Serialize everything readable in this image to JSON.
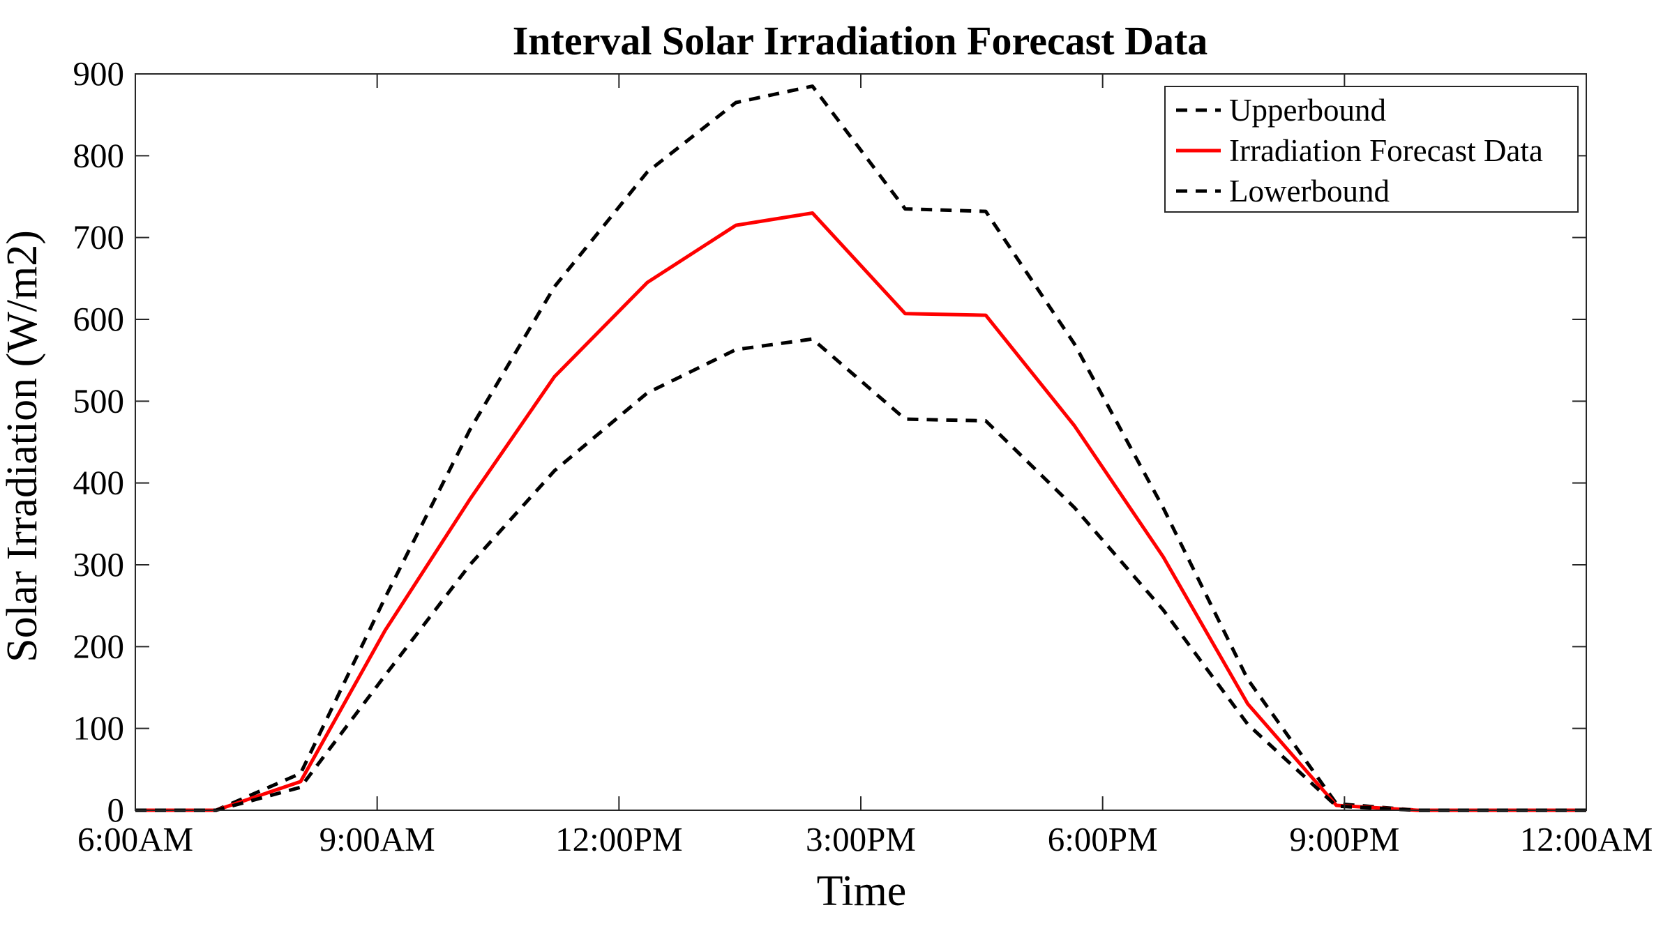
{
  "chart_data": {
    "type": "line",
    "title": "Interval Solar Irradiation Forecast Data",
    "xlabel": "Time",
    "ylabel": "Solar Irradiation (W/m2)",
    "x_hours": [
      6,
      7,
      8,
      9,
      10,
      11,
      12,
      13,
      14,
      15,
      16,
      17,
      18,
      19,
      20,
      21,
      22,
      23,
      24
    ],
    "xlim": [
      6,
      24
    ],
    "ylim": [
      0,
      900
    ],
    "x_ticks": [
      {
        "value": 6,
        "label": "6:00AM"
      },
      {
        "value": 9,
        "label": "9:00AM"
      },
      {
        "value": 12,
        "label": "12:00PM"
      },
      {
        "value": 15,
        "label": "3:00PM"
      },
      {
        "value": 18,
        "label": "6:00PM"
      },
      {
        "value": 21,
        "label": "9:00PM"
      },
      {
        "value": 24,
        "label": "12:00AM"
      }
    ],
    "y_ticks": [
      0,
      100,
      200,
      300,
      400,
      500,
      600,
      700,
      800,
      900
    ],
    "series": [
      {
        "name": "Upperbound",
        "color": "#000000",
        "style": "dashed",
        "x": [
          6,
          7,
          8.05,
          9.1,
          10.15,
          11.2,
          12.35,
          13.45,
          14.4,
          15.55,
          16.55,
          17.65,
          18.75,
          19.8,
          20.9,
          21.9,
          22.9,
          24
        ],
        "values": [
          0,
          0,
          45,
          260,
          465,
          640,
          780,
          865,
          885,
          735,
          732,
          570,
          370,
          160,
          8,
          0,
          0,
          0
        ]
      },
      {
        "name": "Irradiation Forecast Data",
        "color": "#ff0000",
        "style": "solid",
        "x": [
          6,
          7,
          8.05,
          9.1,
          10.15,
          11.2,
          12.35,
          13.45,
          14.4,
          15.55,
          16.55,
          17.65,
          18.75,
          19.8,
          20.9,
          21.9,
          22.9,
          24
        ],
        "values": [
          0,
          0,
          35,
          220,
          380,
          530,
          645,
          715,
          730,
          607,
          605,
          470,
          310,
          130,
          6,
          0,
          0,
          0
        ]
      },
      {
        "name": "Lowerbound",
        "color": "#000000",
        "style": "dashed",
        "x": [
          6,
          7,
          8.05,
          9.1,
          10.15,
          11.2,
          12.35,
          13.45,
          14.4,
          15.55,
          16.55,
          17.65,
          18.75,
          19.8,
          20.9,
          21.9,
          22.9,
          24
        ],
        "values": [
          0,
          0,
          28,
          165,
          300,
          415,
          510,
          563,
          576,
          478,
          476,
          370,
          245,
          105,
          5,
          0,
          0,
          0
        ]
      }
    ],
    "legend": {
      "position": "top-right",
      "entries": [
        "Upperbound",
        "Irradiation Forecast Data",
        "Lowerbound"
      ]
    },
    "grid": false
  }
}
